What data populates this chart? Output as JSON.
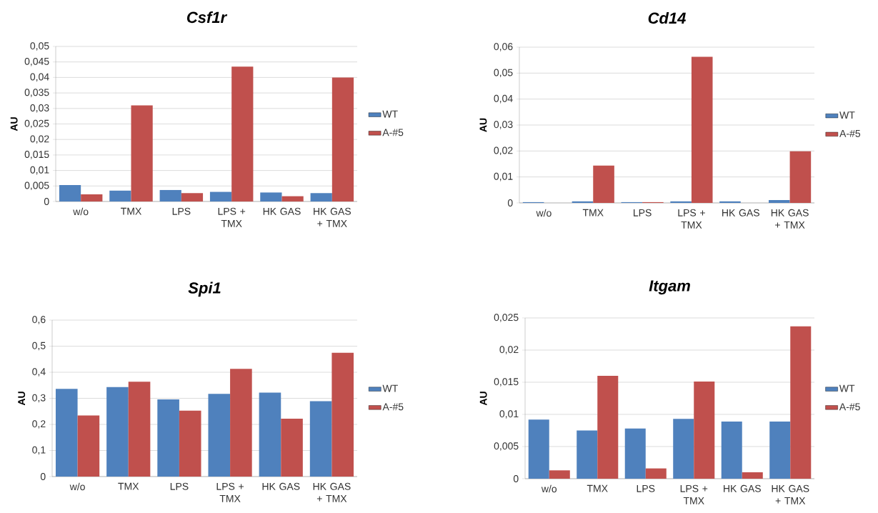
{
  "chart_data": [
    {
      "type": "bar",
      "title": "Csf1r",
      "ylabel": "AU",
      "categories": [
        "w/o",
        "TMX",
        "LPS",
        "LPS + TMX",
        "HK GAS",
        "HK GAS + TMX"
      ],
      "series": [
        {
          "name": "WT",
          "color": "#4f81bd",
          "values": [
            0.0053,
            0.0035,
            0.0037,
            0.0031,
            0.0029,
            0.0027
          ]
        },
        {
          "name": "A-#5",
          "color": "#c0504d",
          "values": [
            0.0023,
            0.031,
            0.0027,
            0.0435,
            0.0017,
            0.04
          ]
        }
      ],
      "ylim": [
        0,
        0.05
      ],
      "yticks": [
        {
          "value": 0,
          "label": "0"
        },
        {
          "value": 0.005,
          "label": "0,005"
        },
        {
          "value": 0.01,
          "label": "0,01"
        },
        {
          "value": 0.015,
          "label": "0,015"
        },
        {
          "value": 0.02,
          "label": "0,02"
        },
        {
          "value": 0.025,
          "label": "0,025"
        },
        {
          "value": 0.03,
          "label": "0,03"
        },
        {
          "value": 0.035,
          "label": "0,035"
        },
        {
          "value": 0.04,
          "label": "0,04"
        },
        {
          "value": 0.045,
          "label": "0,045"
        },
        {
          "value": 0.05,
          "label": "0,05"
        }
      ],
      "grid": "y",
      "legend": "right"
    },
    {
      "type": "bar",
      "title": "Cd14",
      "ylabel": "AU",
      "categories": [
        "w/o",
        "TMX",
        "LPS",
        "LPS + TMX",
        "HK GAS",
        "HK GAS + TMX"
      ],
      "series": [
        {
          "name": "WT",
          "color": "#4f81bd",
          "values": [
            0.0003,
            0.0006,
            0.0003,
            0.0006,
            0.0006,
            0.0011
          ]
        },
        {
          "name": "A-#5",
          "color": "#c0504d",
          "values": [
            0,
            0.0144,
            0.0003,
            0.0563,
            0,
            0.0199
          ]
        }
      ],
      "ylim": [
        0,
        0.06
      ],
      "yticks": [
        {
          "value": 0,
          "label": "0"
        },
        {
          "value": 0.01,
          "label": "0,01"
        },
        {
          "value": 0.02,
          "label": "0,02"
        },
        {
          "value": 0.03,
          "label": "0,03"
        },
        {
          "value": 0.04,
          "label": "0,04"
        },
        {
          "value": 0.05,
          "label": "0,05"
        },
        {
          "value": 0.06,
          "label": "0,06"
        }
      ],
      "grid": "y",
      "legend": "right"
    },
    {
      "type": "bar",
      "title": "Spi1",
      "ylabel": "AU",
      "categories": [
        "w/o",
        "TMX",
        "LPS",
        "LPS + TMX",
        "HK GAS",
        "HK GAS + TMX"
      ],
      "series": [
        {
          "name": "WT",
          "color": "#4f81bd",
          "values": [
            0.336,
            0.343,
            0.296,
            0.317,
            0.322,
            0.289
          ]
        },
        {
          "name": "A-#5",
          "color": "#c0504d",
          "values": [
            0.234,
            0.364,
            0.253,
            0.413,
            0.222,
            0.475
          ]
        }
      ],
      "ylim": [
        0,
        0.6
      ],
      "yticks": [
        {
          "value": 0,
          "label": "0"
        },
        {
          "value": 0.1,
          "label": "0,1"
        },
        {
          "value": 0.2,
          "label": "0,2"
        },
        {
          "value": 0.3,
          "label": "0,3"
        },
        {
          "value": 0.4,
          "label": "0,4"
        },
        {
          "value": 0.5,
          "label": "0,5"
        },
        {
          "value": 0.6,
          "label": "0,6"
        }
      ],
      "grid": "y",
      "legend": "right"
    },
    {
      "type": "bar",
      "title": "Itgam",
      "ylabel": "AU",
      "categories": [
        "w/o",
        "TMX",
        "LPS",
        "LPS + TMX",
        "HK GAS",
        "HK GAS + TMX"
      ],
      "series": [
        {
          "name": "WT",
          "color": "#4f81bd",
          "values": [
            0.0092,
            0.0075,
            0.0078,
            0.0093,
            0.0089,
            0.0089
          ]
        },
        {
          "name": "A-#5",
          "color": "#c0504d",
          "values": [
            0.0013,
            0.016,
            0.0016,
            0.0151,
            0.001,
            0.0237
          ]
        }
      ],
      "ylim": [
        0,
        0.025
      ],
      "yticks": [
        {
          "value": 0,
          "label": "0"
        },
        {
          "value": 0.005,
          "label": "0,005"
        },
        {
          "value": 0.01,
          "label": "0,01"
        },
        {
          "value": 0.015,
          "label": "0,015"
        },
        {
          "value": 0.02,
          "label": "0,02"
        },
        {
          "value": 0.025,
          "label": "0,025"
        }
      ],
      "grid": "y",
      "legend": "right"
    }
  ]
}
